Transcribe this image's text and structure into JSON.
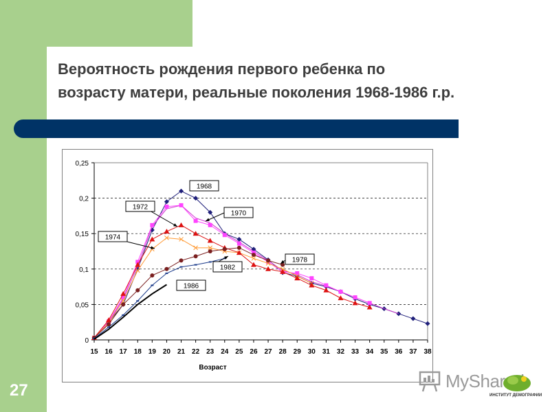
{
  "slide": {
    "title": "Вероятность рождения первого ребенка по\nвозрасту матери, реальные поколения 1968-1986 г.р.",
    "page_number": "27",
    "watermark": "MyShared",
    "institute_label": "ИНСТИТУТ ДЕМОГРАФИИ"
  },
  "colors": {
    "side_panel": "#a8d08d",
    "title_bar": "#003366",
    "title_text": "#3d3d3d",
    "c1968": "#1f1f7a",
    "c1970": "#cc33cc",
    "c1972": "#ff44ff",
    "c1974": "#ff9933",
    "c1978": "#dd1111",
    "c1982": "#7a1f1f",
    "c1986": "#1a3a8a",
    "c_black": "#000000"
  },
  "chart_data": {
    "type": "line",
    "xlabel": "Возраст",
    "ylabel": "",
    "x_ticks": [
      15,
      16,
      17,
      18,
      19,
      20,
      21,
      22,
      23,
      24,
      25,
      26,
      27,
      28,
      29,
      30,
      31,
      32,
      33,
      34,
      35,
      36,
      37,
      38
    ],
    "xlim": [
      15,
      38
    ],
    "y_ticks": [
      "0",
      "0,05",
      "0,1",
      "0,15",
      "0,2",
      "0,25"
    ],
    "y_tick_values": [
      0,
      0.05,
      0.1,
      0.15,
      0.2,
      0.25
    ],
    "ylim": [
      0,
      0.25
    ],
    "grid": "horizontal dashed",
    "series": [
      {
        "name": "1968",
        "color_key": "c1968",
        "marker": "diamond",
        "x": [
          15,
          16,
          17,
          18,
          19,
          20,
          21,
          22,
          23,
          24,
          25,
          26,
          27,
          28,
          29,
          30,
          31,
          32,
          33,
          34,
          35,
          36,
          37,
          38
        ],
        "y": [
          0.003,
          0.025,
          0.05,
          0.1,
          0.155,
          0.195,
          0.21,
          0.2,
          0.18,
          0.15,
          0.142,
          0.128,
          0.113,
          0.095,
          0.09,
          0.08,
          0.075,
          0.068,
          0.058,
          0.05,
          0.044,
          0.037,
          0.03,
          0.023
        ]
      },
      {
        "name": "1970",
        "color_key": "c1970",
        "marker": "none",
        "x": [
          15,
          16,
          17,
          18,
          19,
          20,
          21,
          22,
          23,
          24,
          25,
          26,
          27,
          28,
          29,
          30,
          31,
          32,
          33,
          34,
          35,
          36
        ],
        "y": [
          0.003,
          0.025,
          0.058,
          0.104,
          0.16,
          0.185,
          0.19,
          0.172,
          0.165,
          0.15,
          0.138,
          0.125,
          0.112,
          0.098,
          0.092,
          0.082,
          0.076,
          0.068,
          0.06,
          0.052,
          0.044,
          0.037
        ]
      },
      {
        "name": "1972",
        "color_key": "c1972",
        "marker": "square",
        "x": [
          15,
          16,
          17,
          18,
          19,
          20,
          21,
          22,
          23,
          24,
          25,
          26,
          27,
          28,
          29,
          30,
          31,
          32,
          33,
          34
        ],
        "y": [
          0.003,
          0.026,
          0.06,
          0.11,
          0.162,
          0.188,
          0.19,
          0.168,
          0.162,
          0.148,
          0.136,
          0.123,
          0.11,
          0.096,
          0.094,
          0.087,
          0.077,
          0.068,
          0.06,
          0.052
        ]
      },
      {
        "name": "1974",
        "color_key": "c1974",
        "marker": "x",
        "x": [
          15,
          16,
          17,
          18,
          19,
          20,
          21,
          22,
          23,
          24,
          25,
          26,
          27,
          28,
          29,
          30
        ],
        "y": [
          0.003,
          0.024,
          0.055,
          0.098,
          0.128,
          0.144,
          0.142,
          0.13,
          0.13,
          0.125,
          0.123,
          0.115,
          0.108,
          0.1,
          0.09,
          0.08
        ]
      },
      {
        "name": "",
        "color_key": "c1978",
        "marker": "triangle",
        "x": [
          15,
          16,
          17,
          18,
          19,
          20,
          21,
          22,
          23,
          24,
          25,
          26,
          27,
          28,
          29,
          30,
          31,
          32,
          33,
          34
        ],
        "y": [
          0.003,
          0.028,
          0.065,
          0.106,
          0.142,
          0.153,
          0.162,
          0.15,
          0.14,
          0.13,
          0.123,
          0.106,
          0.1,
          0.096,
          0.087,
          0.077,
          0.07,
          0.059,
          0.052,
          0.046
        ]
      },
      {
        "name": "1978",
        "color_key": "c1982",
        "marker": "circle",
        "x": [
          15,
          16,
          17,
          18,
          19,
          20,
          21,
          22,
          23,
          24,
          25,
          26,
          27,
          28
        ],
        "y": [
          0.003,
          0.022,
          0.05,
          0.07,
          0.091,
          0.1,
          0.112,
          0.118,
          0.125,
          0.128,
          0.13,
          0.12,
          0.112,
          0.106
        ]
      },
      {
        "name": "1982",
        "color_key": "c1986",
        "marker": "dash",
        "x": [
          15,
          16,
          17,
          18,
          19,
          20,
          21,
          22,
          23,
          24
        ],
        "y": [
          0.002,
          0.018,
          0.035,
          0.055,
          0.077,
          0.094,
          0.103,
          0.106,
          0.11,
          0.115
        ]
      },
      {
        "name": "1986",
        "color_key": "c_black",
        "marker": "none",
        "x": [
          15,
          16,
          17,
          18,
          19,
          20
        ],
        "y": [
          0.001,
          0.015,
          0.032,
          0.05,
          0.065,
          0.078
        ]
      }
    ],
    "annotations": [
      {
        "label": "1968",
        "target_series": "1968",
        "target_x": 21
      },
      {
        "label": "1970",
        "target_series": "1970",
        "target_x": 22.5
      },
      {
        "label": "1972",
        "target_series": "",
        "target_x": 20.6
      },
      {
        "label": "1974",
        "target_series": "1974",
        "target_x": 19.2
      },
      {
        "label": "1978",
        "target_series": "1978",
        "target_x": 28
      },
      {
        "label": "1982",
        "target_series": "1982",
        "target_x": 24
      },
      {
        "label": "1986",
        "target_series": "1986",
        "target_x": 20
      }
    ]
  }
}
